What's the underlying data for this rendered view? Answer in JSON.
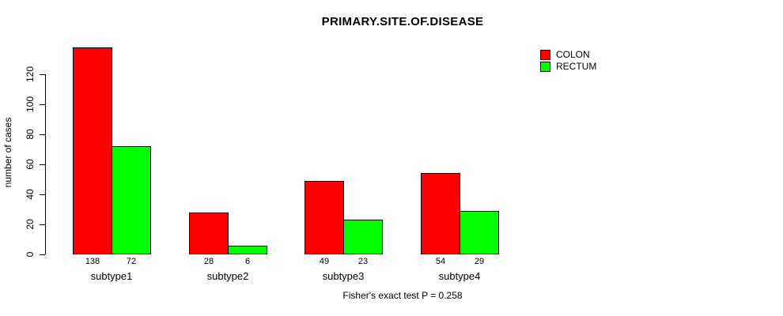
{
  "chart_data": {
    "type": "bar",
    "title": "PRIMARY.SITE.OF.DISEASE",
    "ylabel": "number of cases",
    "xlabel": "",
    "categories": [
      "subtype1",
      "subtype2",
      "subtype3",
      "subtype4"
    ],
    "series": [
      {
        "name": "COLON",
        "color": "#ff0000",
        "values": [
          138,
          28,
          49,
          54
        ]
      },
      {
        "name": "RECTUM",
        "color": "#00ff00",
        "values": [
          72,
          6,
          23,
          29
        ]
      }
    ],
    "yticks": [
      0,
      20,
      40,
      60,
      80,
      100,
      120
    ],
    "ylim": [
      0,
      140
    ],
    "bar_borders": "#000000",
    "background": "#ffffff",
    "grid": false,
    "legend_position": "top-right",
    "bar_value_labels_shown": true,
    "footnote": "Fisher's exact test P = 0.258"
  }
}
